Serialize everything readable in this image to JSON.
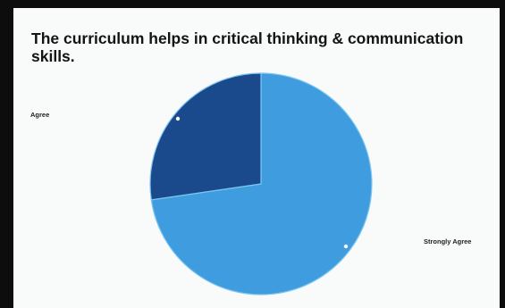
{
  "chart_data": {
    "type": "pie",
    "title": "The curriculum helps in critical thinking & communication skills.",
    "categories": [
      "Strongly Agree",
      "Agree"
    ],
    "values": [
      72.7,
      27.3
    ],
    "colors": [
      "#3f9ddf",
      "#1a4a8c"
    ],
    "legend": "none"
  }
}
